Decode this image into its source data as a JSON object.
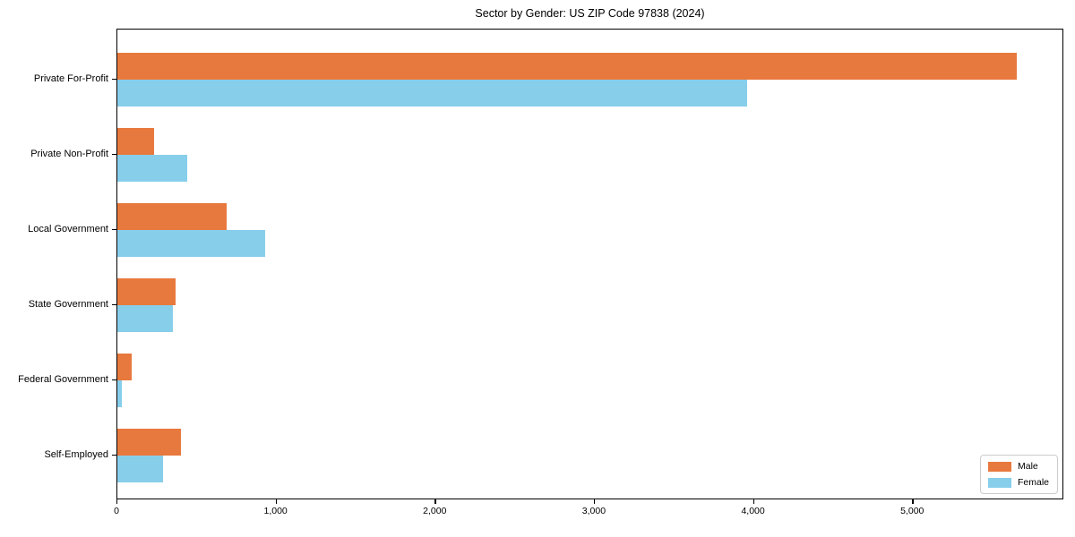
{
  "chart_data": {
    "type": "bar",
    "orientation": "horizontal",
    "title": "Sector by Gender: US ZIP Code 97838 (2024)",
    "categories": [
      "Private For-Profit",
      "Private Non-Profit",
      "Local Government",
      "State Government",
      "Federal Government",
      "Self-Employed"
    ],
    "series": [
      {
        "name": "Male",
        "color": "#e8793e",
        "values": [
          5660,
          230,
          690,
          365,
          90,
          400
        ]
      },
      {
        "name": "Female",
        "color": "#87ceeb",
        "values": [
          3965,
          440,
          930,
          350,
          30,
          290
        ]
      }
    ],
    "xlabel": "",
    "ylabel": "",
    "xlim": [
      0,
      5950
    ],
    "x_ticks": [
      0,
      1000,
      2000,
      3000,
      4000,
      5000
    ],
    "x_tick_labels": [
      "0",
      "1,000",
      "2,000",
      "3,000",
      "4,000",
      "5,000"
    ],
    "grid": false,
    "legend_position": "lower right",
    "frame_color": "#000000",
    "background_color": "#ffffff"
  }
}
